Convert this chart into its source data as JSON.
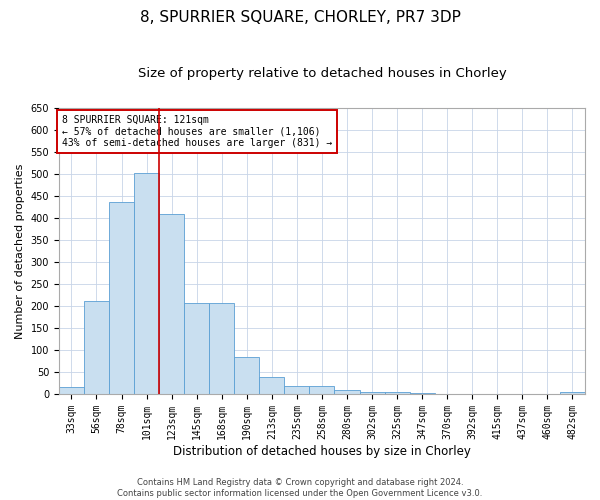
{
  "title": "8, SPURRIER SQUARE, CHORLEY, PR7 3DP",
  "subtitle": "Size of property relative to detached houses in Chorley",
  "xlabel": "Distribution of detached houses by size in Chorley",
  "ylabel": "Number of detached properties",
  "categories": [
    "33sqm",
    "56sqm",
    "78sqm",
    "101sqm",
    "123sqm",
    "145sqm",
    "168sqm",
    "190sqm",
    "213sqm",
    "235sqm",
    "258sqm",
    "280sqm",
    "302sqm",
    "325sqm",
    "347sqm",
    "370sqm",
    "392sqm",
    "415sqm",
    "437sqm",
    "460sqm",
    "482sqm"
  ],
  "values": [
    15,
    212,
    436,
    503,
    410,
    207,
    207,
    85,
    38,
    18,
    18,
    10,
    5,
    4,
    3,
    1,
    1,
    1,
    0,
    0,
    5
  ],
  "bar_color": "#c9dff0",
  "bar_edgecolor": "#5a9fd4",
  "vline_index": 3.5,
  "vline_color": "#cc0000",
  "annotation_text": "8 SPURRIER SQUARE: 121sqm\n← 57% of detached houses are smaller (1,106)\n43% of semi-detached houses are larger (831) →",
  "annotation_box_color": "#ffffff",
  "annotation_box_edgecolor": "#cc0000",
  "ylim": [
    0,
    650
  ],
  "yticks": [
    0,
    50,
    100,
    150,
    200,
    250,
    300,
    350,
    400,
    450,
    500,
    550,
    600,
    650
  ],
  "background_color": "#ffffff",
  "grid_color": "#c8d4e8",
  "title_fontsize": 11,
  "subtitle_fontsize": 9.5,
  "xlabel_fontsize": 8.5,
  "ylabel_fontsize": 8,
  "tick_fontsize": 7,
  "annot_fontsize": 7,
  "footer_text": "Contains HM Land Registry data © Crown copyright and database right 2024.\nContains public sector information licensed under the Open Government Licence v3.0."
}
